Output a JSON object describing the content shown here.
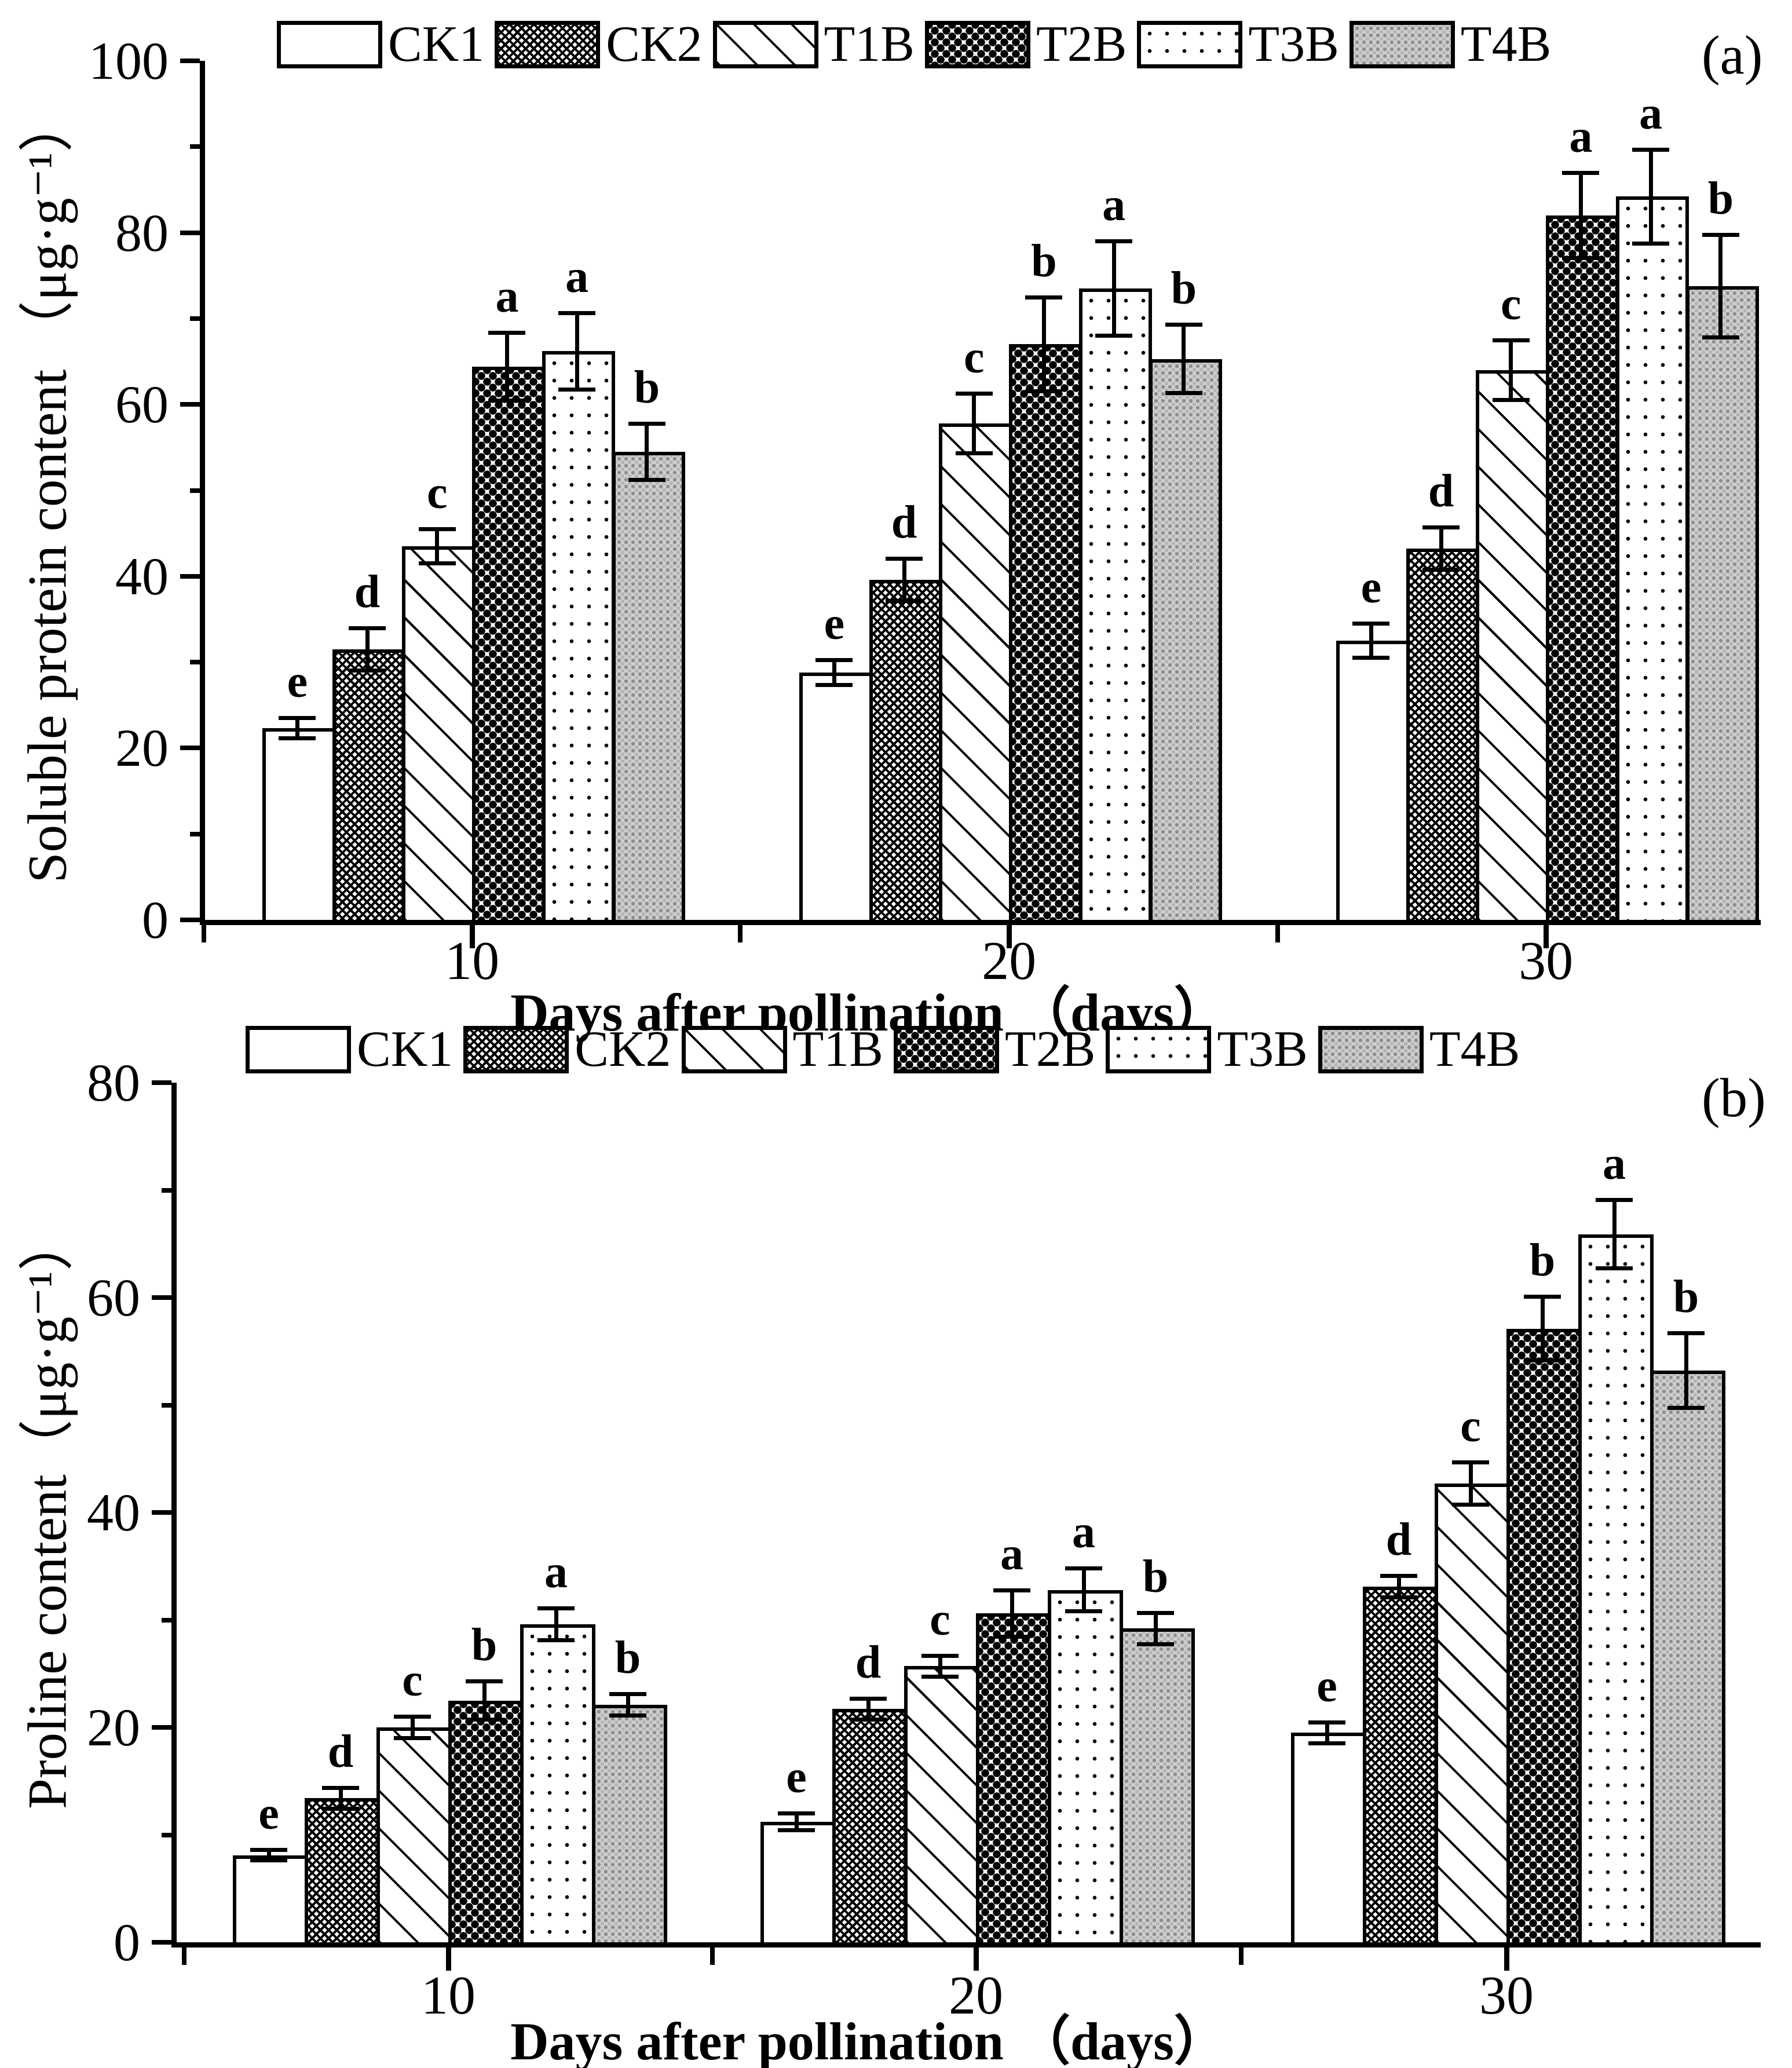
{
  "colors": {
    "foreground": "#000000",
    "background": "#ffffff",
    "t4b_fill": "#cfcfcf"
  },
  "chart_data": [
    {
      "type": "bar",
      "panel_label": "(a)",
      "title": "",
      "ylabel": "Soluble protein content （μg·g⁻¹）",
      "xlabel": "Days after pollination （days）",
      "ylim": [
        0,
        100
      ],
      "ytick_major_step": 20,
      "ytick_minor_step": 10,
      "ytick_labels": [
        "0",
        "20",
        "40",
        "60",
        "80",
        "100"
      ],
      "categories": [
        "10",
        "20",
        "30"
      ],
      "legend_position": "top",
      "grid": false,
      "series": [
        {
          "name": "CK1",
          "pattern": "white-empty",
          "values": [
            22.3,
            28.8,
            32.5
          ],
          "errors": [
            1.2,
            1.5,
            2.0
          ],
          "sig_letters": [
            "e",
            "e",
            "e"
          ]
        },
        {
          "name": "CK2",
          "pattern": "dark-mesh",
          "values": [
            31.5,
            39.6,
            43.2
          ],
          "errors": [
            2.5,
            2.5,
            2.5
          ],
          "sig_letters": [
            "d",
            "d",
            "d"
          ]
        },
        {
          "name": "T1B",
          "pattern": "diagonal-hatch",
          "values": [
            43.5,
            57.8,
            64.0
          ],
          "errors": [
            2.0,
            3.5,
            3.5
          ],
          "sig_letters": [
            "c",
            "c",
            "c"
          ]
        },
        {
          "name": "T2B",
          "pattern": "black-diamond-grid",
          "values": [
            64.4,
            67.0,
            82.0
          ],
          "errors": [
            4.0,
            5.5,
            5.0
          ],
          "sig_letters": [
            "a",
            "b",
            "a"
          ]
        },
        {
          "name": "T3B",
          "pattern": "sparse-dots",
          "values": [
            66.2,
            73.5,
            84.2
          ],
          "errors": [
            4.5,
            5.5,
            5.5
          ],
          "sig_letters": [
            "a",
            "a",
            "a"
          ]
        },
        {
          "name": "T4B",
          "pattern": "gray-speckle",
          "values": [
            54.5,
            65.3,
            73.8
          ],
          "errors": [
            3.3,
            4.0,
            6.0
          ],
          "sig_letters": [
            "b",
            "b",
            "b"
          ]
        }
      ]
    },
    {
      "type": "bar",
      "panel_label": "(b)",
      "title": "",
      "ylabel": "Proline content（μg·g⁻¹）",
      "xlabel": "Days after pollination （days）",
      "ylim": [
        0,
        80
      ],
      "ytick_major_step": 20,
      "ytick_minor_step": 10,
      "ytick_labels": [
        "0",
        "20",
        "40",
        "60",
        "80"
      ],
      "categories": [
        "10",
        "20",
        "30"
      ],
      "legend_position": "top",
      "grid": false,
      "series": [
        {
          "name": "CK1",
          "pattern": "white-empty",
          "values": [
            8.1,
            11.2,
            19.5
          ],
          "errors": [
            0.5,
            0.8,
            1.0
          ],
          "sig_letters": [
            "e",
            "e",
            "e"
          ]
        },
        {
          "name": "CK2",
          "pattern": "dark-mesh",
          "values": [
            13.4,
            21.7,
            33.1
          ],
          "errors": [
            1.0,
            1.0,
            1.0
          ],
          "sig_letters": [
            "d",
            "d",
            "d"
          ]
        },
        {
          "name": "T1B",
          "pattern": "diagonal-hatch",
          "values": [
            20.0,
            25.7,
            42.7
          ],
          "errors": [
            1.0,
            1.0,
            2.0
          ],
          "sig_letters": [
            "c",
            "c",
            "c"
          ]
        },
        {
          "name": "T2B",
          "pattern": "black-diamond-grid",
          "values": [
            22.5,
            30.6,
            57.1
          ],
          "errors": [
            1.8,
            2.2,
            3.0
          ],
          "sig_letters": [
            "b",
            "a",
            "b"
          ]
        },
        {
          "name": "T3B",
          "pattern": "sparse-dots",
          "values": [
            29.6,
            32.8,
            65.9
          ],
          "errors": [
            1.5,
            2.0,
            3.2
          ],
          "sig_letters": [
            "a",
            "a",
            "a"
          ]
        },
        {
          "name": "T4B",
          "pattern": "gray-speckle",
          "values": [
            22.1,
            29.2,
            53.2
          ],
          "errors": [
            1.0,
            1.5,
            3.5
          ],
          "sig_letters": [
            "b",
            "b",
            "b"
          ]
        }
      ]
    }
  ]
}
